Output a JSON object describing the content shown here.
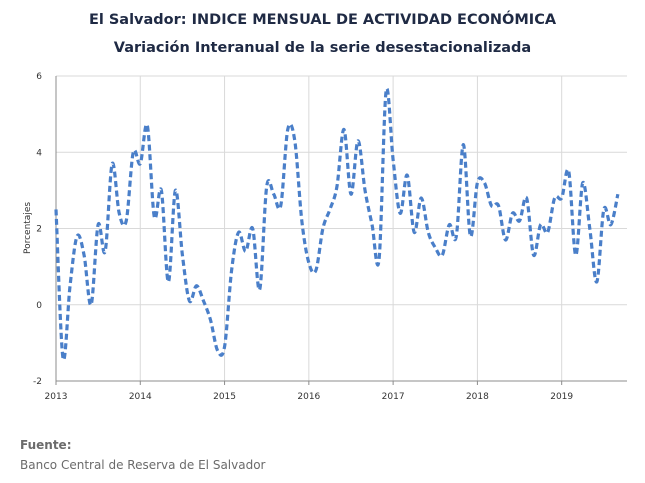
{
  "title": "El Salvador: INDICE MENSUAL DE ACTIVIDAD ECONÓMICA",
  "subtitle": "Variación Interanual de la serie desestacionalizada",
  "source_label": "Fuente:",
  "source_text": "Banco Central de Reserva de El Salvador",
  "colors": {
    "series": "#4a7fc9",
    "grid": "#d9d9d9",
    "axis": "#8c8c8c",
    "text": "#1f2a44"
  },
  "chart_data": {
    "type": "line",
    "title": "El Salvador: INDICE MENSUAL DE ACTIVIDAD ECONÓMICA",
    "subtitle": "Variación Interanual de la serie desestacionalizada",
    "xlabel": "",
    "ylabel": "Porcentajes",
    "ylim": [
      -2,
      6
    ],
    "yticks": [
      -2,
      0,
      2,
      4,
      6
    ],
    "xlim": [
      "2013-01",
      "2019-09"
    ],
    "x_tick_labels": [
      "2013",
      "2014",
      "2015",
      "2016",
      "2017",
      "2018",
      "2019"
    ],
    "grid": true,
    "line_style": "dashed",
    "series": [
      {
        "x": [
          "2013-01",
          "2013-02",
          "2013-03",
          "2013-04",
          "2013-05",
          "2013-06",
          "2013-07",
          "2013-08",
          "2013-09",
          "2013-10",
          "2013-11",
          "2013-12",
          "2014-01",
          "2014-02",
          "2014-03",
          "2014-04",
          "2014-05",
          "2014-06",
          "2014-07",
          "2014-08",
          "2014-09",
          "2014-10",
          "2014-11",
          "2014-12",
          "2015-01",
          "2015-02",
          "2015-03",
          "2015-04",
          "2015-05",
          "2015-06",
          "2015-07",
          "2015-08",
          "2015-09",
          "2015-10",
          "2015-11",
          "2015-12",
          "2016-01",
          "2016-02",
          "2016-03",
          "2016-04",
          "2016-05",
          "2016-06",
          "2016-07",
          "2016-08",
          "2016-09",
          "2016-10",
          "2016-11",
          "2016-12",
          "2017-01",
          "2017-02",
          "2017-03",
          "2017-04",
          "2017-05",
          "2017-06",
          "2017-07",
          "2017-08",
          "2017-09",
          "2017-10",
          "2017-11",
          "2017-12",
          "2018-01",
          "2018-02",
          "2018-03",
          "2018-04",
          "2018-05",
          "2018-06",
          "2018-07",
          "2018-08",
          "2018-09",
          "2018-10",
          "2018-11",
          "2018-12",
          "2019-01",
          "2019-02",
          "2019-03",
          "2019-04",
          "2019-05",
          "2019-06",
          "2019-07",
          "2019-08",
          "2019-09"
        ],
        "values": [
          2.5,
          -1.4,
          0.5,
          1.8,
          1.3,
          0.0,
          2.1,
          1.4,
          3.7,
          2.4,
          2.2,
          4.0,
          3.7,
          4.7,
          2.3,
          3.0,
          0.6,
          3.0,
          1.3,
          0.1,
          0.5,
          0.1,
          -0.4,
          -1.2,
          -1.1,
          0.9,
          1.9,
          1.4,
          2.0,
          0.4,
          3.1,
          2.9,
          2.6,
          4.6,
          4.3,
          2.2,
          1.1,
          0.9,
          2.0,
          2.5,
          3.1,
          4.6,
          2.9,
          4.3,
          3.0,
          2.1,
          1.2,
          5.6,
          3.8,
          2.4,
          3.4,
          1.9,
          2.8,
          1.9,
          1.5,
          1.3,
          2.1,
          1.8,
          4.2,
          1.8,
          3.2,
          3.2,
          2.6,
          2.6,
          1.7,
          2.4,
          2.2,
          2.8,
          1.3,
          2.1,
          1.9,
          2.8,
          2.8,
          3.5,
          1.3,
          3.2,
          2.0,
          0.6,
          2.5,
          2.1,
          2.9
        ]
      }
    ]
  }
}
